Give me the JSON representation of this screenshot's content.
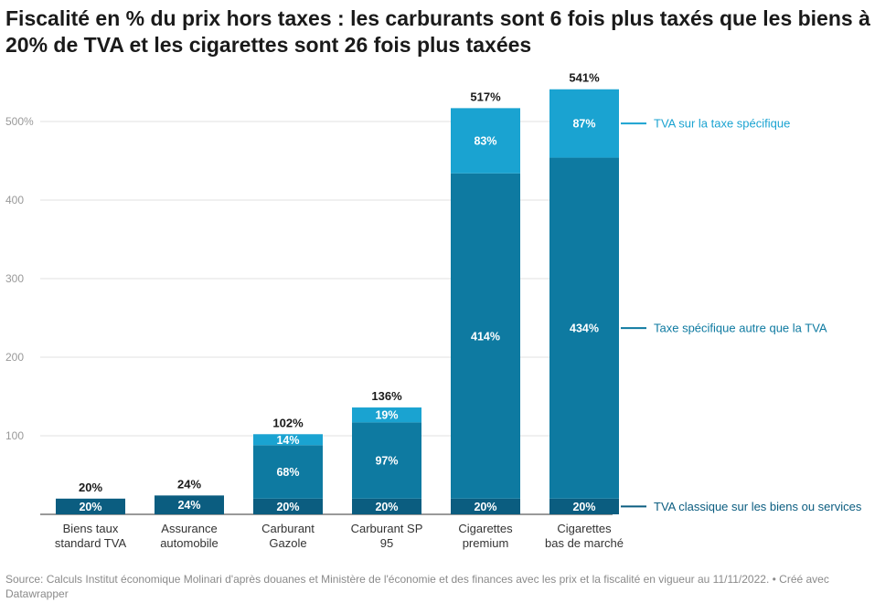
{
  "title": "Fiscalité en % du prix hors taxes : les carburants sont 6 fois plus taxés que les biens à 20% de TVA et les cigarettes sont 26 fois plus taxées",
  "footer": {
    "source": "Source: Calculs Institut économique Molinari d'après douanes et Ministère de l'économie et des finances avec les prix et la fiscalité en vigueur au 11/11/2022.",
    "credit": "• Créé avec Datawrapper"
  },
  "chart_data": {
    "type": "bar",
    "stacked": true,
    "categories": [
      "Biens taux standard TVA",
      "Assurance automobile",
      "Carburant Gazole",
      "Carburant SP 95",
      "Cigarettes premium",
      "Cigarettes bas de marché"
    ],
    "series": [
      {
        "name": "TVA classique sur les biens ou services",
        "color": "#0b5d80",
        "values": [
          20,
          24,
          20,
          20,
          20,
          20
        ],
        "labels": [
          "20%",
          "24%",
          "20%",
          "20%",
          "20%",
          "20%"
        ]
      },
      {
        "name": "Taxe spécifique autre que la TVA",
        "color": "#0e7aa1",
        "values": [
          0,
          0,
          68,
          97,
          414,
          434
        ],
        "labels": [
          "",
          "",
          "68%",
          "97%",
          "414%",
          "434%"
        ]
      },
      {
        "name": "TVA sur la taxe spécifique",
        "color": "#1aa3d1",
        "values": [
          0,
          0,
          14,
          19,
          83,
          87
        ],
        "labels": [
          "",
          "",
          "14%",
          "19%",
          "83%",
          "87%"
        ]
      }
    ],
    "totals": [
      "20%",
      "24%",
      "102%",
      "136%",
      "517%",
      "541%"
    ],
    "ylim": [
      0,
      541
    ],
    "yticks": [
      100,
      200,
      300,
      400,
      500
    ],
    "ytick_labels": [
      "100",
      "200",
      "300",
      "400",
      "500%"
    ],
    "grid": true,
    "legend": "right, inline labels"
  }
}
